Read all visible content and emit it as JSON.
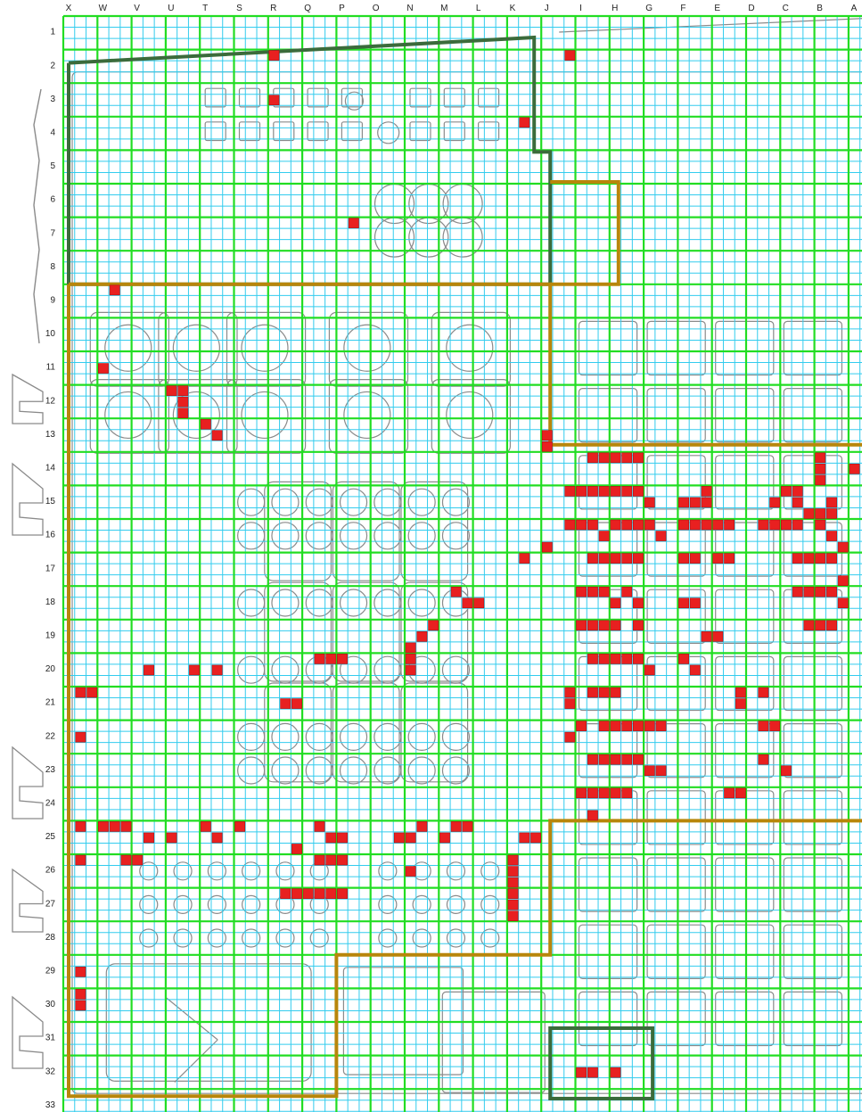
{
  "grid": {
    "columns": [
      "X",
      "W",
      "V",
      "U",
      "T",
      "S",
      "R",
      "Q",
      "P",
      "O",
      "N",
      "M",
      "L",
      "K",
      "J",
      "I",
      "H",
      "G",
      "F",
      "E",
      "D",
      "C",
      "B",
      "A"
    ],
    "rows": [
      "1",
      "2",
      "3",
      "4",
      "5",
      "6",
      "7",
      "8",
      "9",
      "10",
      "11",
      "12",
      "13",
      "14",
      "15",
      "16",
      "17",
      "18",
      "19",
      "20",
      "21",
      "22",
      "23",
      "24",
      "25",
      "26",
      "27",
      "28",
      "29",
      "30",
      "31",
      "32",
      "33"
    ],
    "subdivisions": 3
  },
  "colors": {
    "major_grid": "#22dd22",
    "minor_grid": "#33ccee",
    "floorplan_lines": "#8a8a8a",
    "zone_dark": "#3b6b3b",
    "zone_gold": "#b8860b",
    "marked_cell": "#e82020"
  },
  "marked_cells": [
    [
      "R",
      2,
      0,
      0
    ],
    [
      "J",
      2,
      2,
      0
    ],
    [
      "K",
      4,
      1,
      0
    ],
    [
      "R",
      3,
      0,
      1
    ],
    [
      "P",
      7,
      1,
      0
    ],
    [
      "W",
      9,
      1,
      0
    ],
    [
      "W",
      11,
      0,
      1
    ],
    [
      "U",
      12,
      0,
      0
    ],
    [
      "U",
      12,
      1,
      0
    ],
    [
      "U",
      12,
      1,
      1
    ],
    [
      "U",
      12,
      1,
      2
    ],
    [
      "T",
      13,
      0,
      0
    ],
    [
      "T",
      13,
      1,
      1
    ],
    [
      "J",
      13,
      0,
      1
    ],
    [
      "J",
      13,
      0,
      2
    ],
    [
      "I",
      14,
      1,
      0
    ],
    [
      "I",
      14,
      2,
      0
    ],
    [
      "H",
      14,
      0,
      0
    ],
    [
      "H",
      14,
      1,
      0
    ],
    [
      "H",
      14,
      2,
      0
    ],
    [
      "B",
      14,
      0,
      0
    ],
    [
      "B",
      14,
      0,
      1
    ],
    [
      "B",
      14,
      0,
      2
    ],
    [
      "A",
      14,
      0,
      1
    ],
    [
      "J",
      15,
      2,
      0
    ],
    [
      "I",
      15,
      0,
      0
    ],
    [
      "I",
      15,
      1,
      0
    ],
    [
      "I",
      15,
      2,
      0
    ],
    [
      "H",
      15,
      0,
      0
    ],
    [
      "H",
      15,
      1,
      0
    ],
    [
      "H",
      15,
      2,
      0
    ],
    [
      "G",
      15,
      0,
      1
    ],
    [
      "F",
      15,
      0,
      1
    ],
    [
      "F",
      15,
      1,
      1
    ],
    [
      "F",
      15,
      2,
      0
    ],
    [
      "F",
      15,
      2,
      1
    ],
    [
      "D",
      15,
      2,
      1
    ],
    [
      "C",
      15,
      0,
      0
    ],
    [
      "C",
      15,
      1,
      0
    ],
    [
      "C",
      15,
      1,
      1
    ],
    [
      "C",
      15,
      2,
      2
    ],
    [
      "B",
      15,
      0,
      2
    ],
    [
      "B",
      15,
      1,
      2
    ],
    [
      "B",
      15,
      1,
      1
    ],
    [
      "J",
      16,
      2,
      0
    ],
    [
      "I",
      16,
      0,
      0
    ],
    [
      "I",
      16,
      1,
      0
    ],
    [
      "I",
      16,
      2,
      1
    ],
    [
      "H",
      16,
      0,
      0
    ],
    [
      "H",
      16,
      1,
      0
    ],
    [
      "H",
      16,
      2,
      0
    ],
    [
      "G",
      16,
      0,
      0
    ],
    [
      "G",
      16,
      1,
      1
    ],
    [
      "F",
      16,
      0,
      0
    ],
    [
      "F",
      16,
      1,
      0
    ],
    [
      "F",
      16,
      2,
      0
    ],
    [
      "E",
      16,
      0,
      0
    ],
    [
      "E",
      16,
      1,
      0
    ],
    [
      "D",
      16,
      1,
      0
    ],
    [
      "D",
      16,
      2,
      0
    ],
    [
      "C",
      16,
      0,
      0
    ],
    [
      "C",
      16,
      1,
      0
    ],
    [
      "B",
      16,
      0,
      0
    ],
    [
      "B",
      16,
      1,
      1
    ],
    [
      "B",
      16,
      2,
      2
    ],
    [
      "I",
      17,
      1,
      0
    ],
    [
      "I",
      17,
      2,
      0
    ],
    [
      "H",
      17,
      0,
      0
    ],
    [
      "H",
      17,
      1,
      0
    ],
    [
      "H",
      17,
      2,
      0
    ],
    [
      "F",
      17,
      0,
      0
    ],
    [
      "F",
      17,
      1,
      0
    ],
    [
      "E",
      17,
      0,
      0
    ],
    [
      "E",
      17,
      1,
      0
    ],
    [
      "C",
      17,
      1,
      0
    ],
    [
      "C",
      17,
      2,
      0
    ],
    [
      "B",
      17,
      0,
      0
    ],
    [
      "B",
      17,
      1,
      0
    ],
    [
      "B",
      17,
      2,
      2
    ],
    [
      "K",
      17,
      1,
      0
    ],
    [
      "J",
      16,
      0,
      2
    ],
    [
      "I",
      18,
      0,
      0
    ],
    [
      "I",
      18,
      1,
      0
    ],
    [
      "I",
      18,
      2,
      0
    ],
    [
      "H",
      18,
      0,
      1
    ],
    [
      "H",
      18,
      1,
      0
    ],
    [
      "H",
      18,
      2,
      1
    ],
    [
      "F",
      18,
      0,
      1
    ],
    [
      "F",
      18,
      1,
      1
    ],
    [
      "C",
      18,
      1,
      0
    ],
    [
      "C",
      18,
      2,
      0
    ],
    [
      "B",
      18,
      0,
      0
    ],
    [
      "B",
      18,
      1,
      0
    ],
    [
      "B",
      18,
      2,
      1
    ],
    [
      "M",
      18,
      1,
      0
    ],
    [
      "M",
      18,
      2,
      1
    ],
    [
      "L",
      18,
      0,
      1
    ],
    [
      "I",
      19,
      0,
      0
    ],
    [
      "I",
      19,
      1,
      0
    ],
    [
      "I",
      19,
      2,
      0
    ],
    [
      "H",
      19,
      0,
      0
    ],
    [
      "H",
      19,
      2,
      0
    ],
    [
      "C",
      19,
      2,
      0
    ],
    [
      "B",
      19,
      0,
      0
    ],
    [
      "B",
      19,
      1,
      0
    ],
    [
      "E",
      19,
      0,
      1
    ],
    [
      "F",
      19,
      2,
      1
    ],
    [
      "N",
      19,
      0,
      2
    ],
    [
      "N",
      19,
      1,
      1
    ],
    [
      "N",
      19,
      2,
      0
    ],
    [
      "I",
      20,
      1,
      0
    ],
    [
      "I",
      20,
      2,
      0
    ],
    [
      "H",
      20,
      0,
      0
    ],
    [
      "H",
      20,
      1,
      0
    ],
    [
      "H",
      20,
      2,
      0
    ],
    [
      "G",
      20,
      0,
      1
    ],
    [
      "F",
      20,
      0,
      0
    ],
    [
      "F",
      20,
      1,
      1
    ],
    [
      "Q",
      20,
      1,
      0
    ],
    [
      "Q",
      20,
      2,
      0
    ],
    [
      "P",
      20,
      0,
      0
    ],
    [
      "N",
      20,
      0,
      0
    ],
    [
      "N",
      20,
      0,
      1
    ],
    [
      "V",
      20,
      1,
      1
    ],
    [
      "U",
      20,
      2,
      1
    ],
    [
      "T",
      20,
      1,
      1
    ],
    [
      "I",
      21,
      1,
      0
    ],
    [
      "I",
      21,
      2,
      0
    ],
    [
      "H",
      21,
      0,
      0
    ],
    [
      "X",
      21,
      1,
      0
    ],
    [
      "X",
      21,
      2,
      0
    ],
    [
      "J",
      21,
      2,
      0
    ],
    [
      "J",
      21,
      2,
      1
    ],
    [
      "R",
      21,
      1,
      1
    ],
    [
      "R",
      21,
      2,
      1
    ],
    [
      "E",
      21,
      2,
      0
    ],
    [
      "E",
      21,
      2,
      1
    ],
    [
      "D",
      21,
      1,
      0
    ],
    [
      "I",
      22,
      0,
      0
    ],
    [
      "I",
      22,
      2,
      0
    ],
    [
      "H",
      22,
      0,
      0
    ],
    [
      "H",
      22,
      1,
      0
    ],
    [
      "H",
      22,
      2,
      0
    ],
    [
      "G",
      22,
      0,
      0
    ],
    [
      "G",
      22,
      1,
      0
    ],
    [
      "D",
      22,
      1,
      0
    ],
    [
      "D",
      22,
      2,
      0
    ],
    [
      "X",
      22,
      1,
      1
    ],
    [
      "J",
      22,
      2,
      1
    ],
    [
      "I",
      23,
      1,
      0
    ],
    [
      "I",
      23,
      2,
      0
    ],
    [
      "H",
      23,
      0,
      0
    ],
    [
      "H",
      23,
      1,
      0
    ],
    [
      "H",
      23,
      2,
      0
    ],
    [
      "G",
      23,
      0,
      1
    ],
    [
      "G",
      23,
      1,
      1
    ],
    [
      "D",
      23,
      1,
      0
    ],
    [
      "C",
      23,
      0,
      1
    ],
    [
      "I",
      24,
      0,
      0
    ],
    [
      "I",
      24,
      1,
      0
    ],
    [
      "I",
      24,
      2,
      0
    ],
    [
      "H",
      24,
      0,
      0
    ],
    [
      "H",
      24,
      1,
      0
    ],
    [
      "E",
      24,
      2,
      0
    ],
    [
      "E",
      24,
      1,
      0
    ],
    [
      "I",
      24,
      1,
      2
    ],
    [
      "X",
      25,
      1,
      0
    ],
    [
      "W",
      25,
      0,
      0
    ],
    [
      "W",
      25,
      1,
      0
    ],
    [
      "W",
      25,
      2,
      0
    ],
    [
      "V",
      25,
      1,
      1
    ],
    [
      "U",
      25,
      0,
      1
    ],
    [
      "T",
      25,
      0,
      0
    ],
    [
      "T",
      25,
      1,
      1
    ],
    [
      "S",
      25,
      0,
      0
    ],
    [
      "R",
      25,
      2,
      2
    ],
    [
      "Q",
      25,
      1,
      0
    ],
    [
      "Q",
      25,
      2,
      1
    ],
    [
      "P",
      25,
      0,
      1
    ],
    [
      "O",
      25,
      2,
      1
    ],
    [
      "N",
      25,
      0,
      1
    ],
    [
      "N",
      25,
      1,
      0
    ],
    [
      "M",
      25,
      0,
      1
    ],
    [
      "M",
      25,
      1,
      0
    ],
    [
      "M",
      25,
      2,
      0
    ],
    [
      "K",
      25,
      1,
      1
    ],
    [
      "K",
      25,
      2,
      1
    ],
    [
      "X",
      26,
      1,
      0
    ],
    [
      "W",
      26,
      2,
      0
    ],
    [
      "V",
      26,
      0,
      0
    ],
    [
      "Q",
      26,
      1,
      0
    ],
    [
      "Q",
      26,
      2,
      0
    ],
    [
      "P",
      26,
      0,
      0
    ],
    [
      "N",
      26,
      0,
      1
    ],
    [
      "K",
      26,
      0,
      0
    ],
    [
      "K",
      26,
      0,
      1
    ],
    [
      "K",
      26,
      0,
      2
    ],
    [
      "R",
      27,
      1,
      0
    ],
    [
      "R",
      27,
      2,
      0
    ],
    [
      "Q",
      27,
      0,
      0
    ],
    [
      "Q",
      27,
      1,
      0
    ],
    [
      "Q",
      27,
      2,
      0
    ],
    [
      "P",
      27,
      0,
      0
    ],
    [
      "K",
      27,
      0,
      0
    ],
    [
      "K",
      27,
      0,
      1
    ],
    [
      "K",
      27,
      0,
      2
    ],
    [
      "X",
      29,
      1,
      1
    ],
    [
      "X",
      30,
      1,
      0
    ],
    [
      "X",
      30,
      1,
      1
    ],
    [
      "I",
      32,
      0,
      1
    ],
    [
      "I",
      32,
      1,
      1
    ],
    [
      "H",
      32,
      0,
      1
    ]
  ]
}
